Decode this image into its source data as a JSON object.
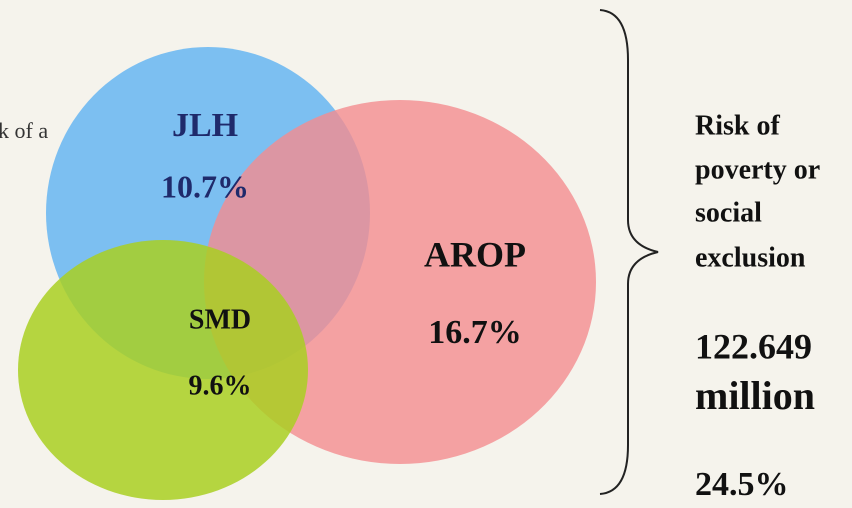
{
  "fragment": "k of a",
  "sets": [
    {
      "label": "JLH",
      "value": "10.7%"
    },
    {
      "label": "AROP",
      "value": "16.7%"
    },
    {
      "label": "SMD",
      "value": "9.6%"
    }
  ],
  "summary": {
    "title_lines": [
      "Risk of",
      "poverty or",
      "social",
      "exclusion"
    ],
    "total": "122.649",
    "unit": "million",
    "share": "24.5%"
  }
}
